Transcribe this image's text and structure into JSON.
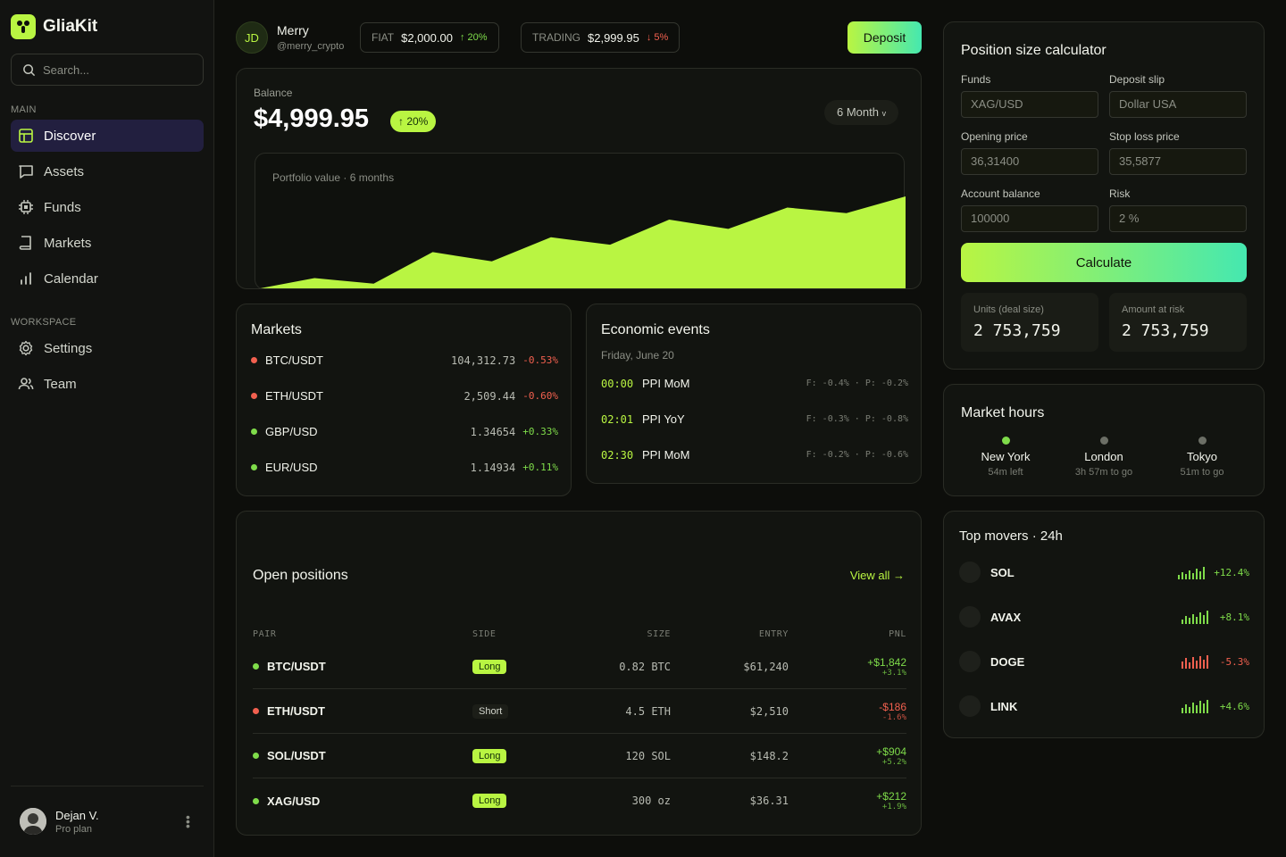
{
  "app": {
    "name": "GliaKit"
  },
  "search": {
    "placeholder": "Search..."
  },
  "sidebar": {
    "main_label": "MAIN",
    "workspace_label": "WORKSPACE",
    "items": [
      {
        "label": "Discover",
        "icon": "layout-icon"
      },
      {
        "label": "Assets",
        "icon": "chat-icon"
      },
      {
        "label": "Funds",
        "icon": "chip-icon"
      },
      {
        "label": "Markets",
        "icon": "book-icon"
      },
      {
        "label": "Calendar",
        "icon": "bar-chart-icon"
      },
      {
        "label": "Settings",
        "icon": "gear-icon"
      },
      {
        "label": "Team",
        "icon": "users-icon"
      }
    ],
    "user": {
      "name": "Dejan V.",
      "plan": "Pro plan"
    }
  },
  "header": {
    "initials": "JD",
    "name": "Merry",
    "handle": "@merry_crypto",
    "fiat": {
      "label": "FIAT",
      "value": "$2,000.00",
      "change": "↑ 20%"
    },
    "trading": {
      "label": "TRADING",
      "value": "$2,999.95",
      "change": "↓ 5%"
    },
    "deposit": "Deposit"
  },
  "balance": {
    "label": "Balance",
    "value": "$4,999.95",
    "change": "↑ 20%",
    "period": "6 Month",
    "chart_title": "Portfolio value · 6 months"
  },
  "chart_data": {
    "type": "area",
    "title": "Portfolio value · 6 months",
    "values": [
      0,
      12,
      6,
      40,
      30,
      56,
      48,
      75,
      65,
      88,
      82,
      100
    ],
    "ylim": [
      0,
      100
    ],
    "color": "#b9f542"
  },
  "markets": {
    "title": "Markets",
    "rows": [
      {
        "pair": "BTC/USDT",
        "price": "104,312.73",
        "change": "-0.53%",
        "dir": "down"
      },
      {
        "pair": "ETH/USDT",
        "price": "2,509.44",
        "change": "-0.60%",
        "dir": "down"
      },
      {
        "pair": "GBP/USD",
        "price": "1.34654",
        "change": "+0.33%",
        "dir": "up"
      },
      {
        "pair": "EUR/USD",
        "price": "1.14934",
        "change": "+0.11%",
        "dir": "up"
      }
    ]
  },
  "events": {
    "title": "Economic events",
    "date": "Friday, June 20",
    "rows": [
      {
        "time": "00:00",
        "name": "PPI MoM",
        "forecast": "F: -0.4% · P: -0.2%"
      },
      {
        "time": "02:01",
        "name": "PPI YoY",
        "forecast": "F: -0.3% · P: -0.8%"
      },
      {
        "time": "02:30",
        "name": "PPI MoM",
        "forecast": "F: -0.2% · P: -0.6%"
      }
    ]
  },
  "positions": {
    "title": "Open positions",
    "view_all": "View all →",
    "headers": {
      "pair": "PAIR",
      "side": "SIDE",
      "size": "SIZE",
      "entry": "ENTRY",
      "pnl": "PNL"
    },
    "rows": [
      {
        "pair": "BTC/USDT",
        "side": "Long",
        "size": "0.82 BTC",
        "entry": "$61,240",
        "pnl": "+$1,842",
        "pnl_pct": "+3.1%",
        "dir": "up"
      },
      {
        "pair": "ETH/USDT",
        "side": "Short",
        "size": "4.5 ETH",
        "entry": "$2,510",
        "pnl": "-$186",
        "pnl_pct": "-1.6%",
        "dir": "down"
      },
      {
        "pair": "SOL/USDT",
        "side": "Long",
        "size": "120 SOL",
        "entry": "$148.2",
        "pnl": "+$904",
        "pnl_pct": "+5.2%",
        "dir": "up"
      },
      {
        "pair": "XAG/USD",
        "side": "Long",
        "size": "300 oz",
        "entry": "$36.31",
        "pnl": "+$212",
        "pnl_pct": "+1.9%",
        "dir": "up"
      }
    ]
  },
  "calculator": {
    "title": "Position size calculator",
    "funds_label": "Funds",
    "funds_value": "XAG/USD",
    "slip_label": "Deposit slip",
    "slip_value": "Dollar USA",
    "open_label": "Opening price",
    "open_value": "36,31400",
    "stop_label": "Stop loss price",
    "stop_value": "35,5877",
    "acct_label": "Account balance",
    "acct_value": "100000",
    "risk_label": "Risk",
    "risk_value": "2 %",
    "button": "Calculate",
    "units_label": "Units (deal size)",
    "units_value": "2 753,759",
    "amount_label": "Amount at risk",
    "amount_value": "2 753,759"
  },
  "hours": {
    "title": "Market hours",
    "cities": [
      {
        "name": "New York",
        "status": "54m left",
        "open": true
      },
      {
        "name": "London",
        "status": "3h 57m to go",
        "open": false
      },
      {
        "name": "Tokyo",
        "status": "51m to go",
        "open": false
      }
    ]
  },
  "movers": {
    "title": "Top movers · 24h",
    "rows": [
      {
        "symbol": "SOL",
        "change": "+12.4%",
        "dir": "up"
      },
      {
        "symbol": "AVAX",
        "change": "+8.1%",
        "dir": "up"
      },
      {
        "symbol": "DOGE",
        "change": "-5.3%",
        "dir": "down"
      },
      {
        "symbol": "LINK",
        "change": "+4.6%",
        "dir": "up"
      }
    ]
  }
}
